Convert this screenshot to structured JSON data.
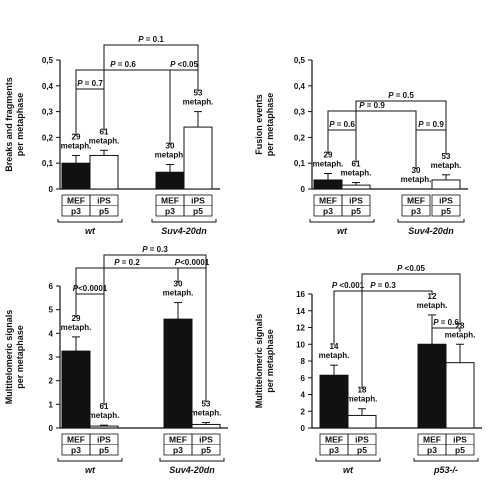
{
  "chart_data": [
    {
      "type": "bar",
      "ylabel": "Breaks and fragments per metaphase",
      "ylim": [
        0,
        0.5
      ],
      "yticks": [
        "0",
        "0,1",
        "0,2",
        "0,3",
        "0,4",
        "0,5"
      ],
      "bars": [
        {
          "line1": "MEF",
          "line2": "p3",
          "value": 0.1,
          "err": 0.03,
          "fill": "#111111",
          "n_label": [
            "29",
            "metaph."
          ]
        },
        {
          "line1": "iPS",
          "line2": "p5",
          "value": 0.13,
          "err": 0.02,
          "fill": "#ffffff",
          "n_label": [
            "61",
            "metaph."
          ]
        },
        {
          "line1": "MEF",
          "line2": "p3",
          "value": 0.065,
          "err": 0.03,
          "fill": "#111111",
          "n_label": [
            "30",
            "metaph."
          ]
        },
        {
          "line1": "iPS",
          "line2": "p5",
          "value": 0.24,
          "err": 0.06,
          "fill": "#ffffff",
          "n_label": [
            "53",
            "metaph."
          ]
        }
      ],
      "groups": [
        "wt",
        "Suv4-20dn"
      ],
      "comparisons": [
        {
          "label": "P = 0.1",
          "from": 1,
          "to": 3
        },
        {
          "label": "P = 0.6",
          "from": 0,
          "to": 2
        },
        {
          "label": "P <0.05",
          "from": 2,
          "to": 3
        },
        {
          "label": "P = 0.7",
          "from": 0,
          "to": 1
        }
      ]
    },
    {
      "type": "bar",
      "ylabel": "Fusion events per metaphase",
      "ylim": [
        0,
        0.5
      ],
      "yticks": [
        "0",
        "0,1",
        "0,2",
        "0,3",
        "0,4",
        "0,5"
      ],
      "bars": [
        {
          "line1": "MEF",
          "line2": "p3",
          "value": 0.035,
          "err": 0.025,
          "fill": "#111111",
          "n_label": [
            "29",
            "metaph."
          ]
        },
        {
          "line1": "iPS",
          "line2": "p5",
          "value": 0.015,
          "err": 0.01,
          "fill": "#ffffff",
          "n_label": [
            "61",
            "metaph."
          ]
        },
        {
          "line1": "MEF",
          "line2": "p3",
          "value": 0.0,
          "err": 0.0,
          "fill": "#111111",
          "n_label": [
            "30",
            "metaph."
          ]
        },
        {
          "line1": "iPS",
          "line2": "p5",
          "value": 0.035,
          "err": 0.02,
          "fill": "#ffffff",
          "n_label": [
            "53",
            "metaph."
          ]
        }
      ],
      "groups": [
        "wt",
        "Suv4-20dn"
      ],
      "comparisons": [
        {
          "label": "P = 0.5",
          "from": 1,
          "to": 3
        },
        {
          "label": "P = 0.9",
          "from": 0,
          "to": 2
        },
        {
          "label": "P = 0.6",
          "from": 0,
          "to": 1
        },
        {
          "label": "P = 0.9",
          "from": 2,
          "to": 3
        }
      ]
    },
    {
      "type": "bar",
      "ylabel": "Multitelomeric signals per metaphase",
      "ylim": [
        0,
        6
      ],
      "yticks": [
        "0",
        "1",
        "2",
        "3",
        "4",
        "5",
        "6"
      ],
      "bars": [
        {
          "line1": "MEF",
          "line2": "p3",
          "value": 3.25,
          "err": 0.6,
          "fill": "#111111",
          "n_label": [
            "29",
            "metaph."
          ]
        },
        {
          "line1": "iPS",
          "line2": "p5",
          "value": 0.08,
          "err": 0.04,
          "fill": "#ffffff",
          "n_label": [
            "61",
            "metaph."
          ]
        },
        {
          "line1": "MEF",
          "line2": "p3",
          "value": 4.6,
          "err": 0.7,
          "fill": "#111111",
          "n_label": [
            "30",
            "metaph."
          ]
        },
        {
          "line1": "iPS",
          "line2": "p5",
          "value": 0.15,
          "err": 0.08,
          "fill": "#ffffff",
          "n_label": [
            "53",
            "metaph."
          ]
        }
      ],
      "groups": [
        "wt",
        "Suv4-20dn"
      ],
      "comparisons": [
        {
          "label": "P = 0.3",
          "from": 1,
          "to": 3
        },
        {
          "label": "P = 0.2",
          "from": 0,
          "to": 2
        },
        {
          "label": "P<0.0001",
          "from": 2,
          "to": 3
        },
        {
          "label": "P<0.0001",
          "from": 0,
          "to": 1
        }
      ]
    },
    {
      "type": "bar",
      "ylabel": "Multitelomeric signals per metaphase",
      "ylim": [
        0,
        16
      ],
      "yticks": [
        "0",
        "2",
        "4",
        "6",
        "8",
        "10",
        "12",
        "14",
        "16"
      ],
      "bars": [
        {
          "line1": "MEF",
          "line2": "p3",
          "value": 6.3,
          "err": 1.2,
          "fill": "#111111",
          "n_label": [
            "14",
            "metaph."
          ]
        },
        {
          "line1": "iPS",
          "line2": "p5",
          "value": 1.5,
          "err": 0.8,
          "fill": "#ffffff",
          "n_label": [
            "18",
            "metaph."
          ]
        },
        {
          "line1": "MEF",
          "line2": "p3",
          "value": 10.0,
          "err": 3.5,
          "fill": "#111111",
          "n_label": [
            "12",
            "metaph."
          ]
        },
        {
          "line1": "iPS",
          "line2": "p5",
          "value": 7.8,
          "err": 2.2,
          "fill": "#ffffff",
          "n_label": [
            "28",
            "metaph."
          ]
        }
      ],
      "groups": [
        "wt",
        "p53-/-"
      ],
      "comparisons": [
        {
          "label": "P <0.05",
          "from": 1,
          "to": 3
        },
        {
          "label": "P = 0.3",
          "from": 0,
          "to": 2
        },
        {
          "label": "P <0.001",
          "from": 0,
          "to": 1
        },
        {
          "label": "P = 0.6",
          "from": 2,
          "to": 3
        }
      ]
    }
  ]
}
